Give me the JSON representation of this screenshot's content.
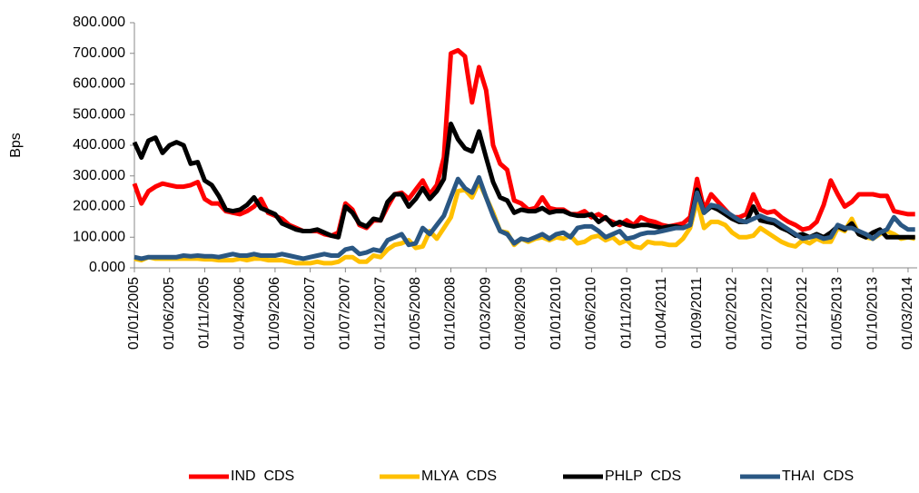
{
  "chart_data": {
    "type": "line",
    "y_label": "Bps",
    "categories": [
      "01/01/2005",
      null,
      null,
      null,
      null,
      "01/06/2005",
      null,
      null,
      null,
      null,
      "01/11/2005",
      null,
      null,
      null,
      null,
      "01/04/2006",
      null,
      null,
      null,
      null,
      "01/09/2006",
      null,
      null,
      null,
      null,
      "01/02/2007",
      null,
      null,
      null,
      null,
      "01/07/2007",
      null,
      null,
      null,
      null,
      "01/12/2007",
      null,
      null,
      null,
      null,
      "01/05/2008",
      null,
      null,
      null,
      null,
      "01/10/2008",
      null,
      null,
      null,
      null,
      "01/03/2009",
      null,
      null,
      null,
      null,
      "01/08/2009",
      null,
      null,
      null,
      null,
      "01/01/2010",
      null,
      null,
      null,
      null,
      "01/06/2010",
      null,
      null,
      null,
      null,
      "01/11/2010",
      null,
      null,
      null,
      null,
      "01/04/2011",
      null,
      null,
      null,
      null,
      "01/09/2011",
      null,
      null,
      null,
      null,
      "01/02/2012",
      null,
      null,
      null,
      null,
      "01/07/2012",
      null,
      null,
      null,
      null,
      "01/12/2012",
      null,
      null,
      null,
      null,
      "01/05/2013",
      null,
      null,
      null,
      null,
      "01/10/2013",
      null,
      null,
      null,
      null,
      "01/03/2014",
      null
    ],
    "series": [
      {
        "name": "IND  CDS",
        "color": "#ff0000",
        "values": [
          275,
          210,
          250,
          265,
          275,
          270,
          265,
          265,
          270,
          280,
          225,
          210,
          210,
          185,
          180,
          175,
          185,
          200,
          225,
          180,
          170,
          160,
          140,
          130,
          120,
          120,
          120,
          110,
          105,
          115,
          210,
          190,
          140,
          130,
          155,
          155,
          200,
          240,
          245,
          225,
          255,
          285,
          240,
          270,
          360,
          700,
          710,
          690,
          540,
          655,
          580,
          400,
          340,
          320,
          220,
          210,
          190,
          195,
          230,
          195,
          190,
          190,
          175,
          175,
          185,
          165,
          175,
          160,
          150,
          140,
          155,
          140,
          165,
          155,
          150,
          140,
          135,
          140,
          145,
          165,
          290,
          190,
          240,
          215,
          190,
          165,
          165,
          175,
          240,
          190,
          180,
          185,
          165,
          150,
          140,
          125,
          130,
          150,
          205,
          285,
          240,
          200,
          215,
          240,
          240,
          240,
          235,
          235,
          185,
          180,
          175,
          175
        ]
      },
      {
        "name": "MLYA  CDS",
        "color": "#ffc000",
        "values": [
          30,
          25,
          35,
          30,
          30,
          30,
          30,
          30,
          30,
          30,
          28,
          28,
          25,
          25,
          25,
          30,
          25,
          30,
          30,
          25,
          25,
          25,
          20,
          15,
          15,
          15,
          20,
          15,
          15,
          20,
          35,
          35,
          20,
          20,
          40,
          35,
          60,
          75,
          80,
          90,
          65,
          70,
          120,
          95,
          130,
          165,
          250,
          255,
          230,
          280,
          230,
          180,
          120,
          115,
          75,
          95,
          85,
          95,
          100,
          90,
          100,
          95,
          105,
          80,
          85,
          100,
          105,
          90,
          100,
          80,
          90,
          70,
          65,
          85,
          80,
          80,
          75,
          75,
          95,
          130,
          220,
          130,
          150,
          150,
          140,
          115,
          100,
          100,
          105,
          130,
          115,
          100,
          85,
          75,
          70,
          90,
          80,
          95,
          85,
          85,
          130,
          120,
          160,
          110,
          100,
          95,
          110,
          120,
          110,
          95,
          100,
          95
        ]
      },
      {
        "name": "PHLP  CDS",
        "color": "#000000",
        "values": [
          410,
          360,
          415,
          425,
          375,
          400,
          410,
          400,
          340,
          345,
          285,
          270,
          235,
          190,
          185,
          190,
          205,
          230,
          195,
          185,
          175,
          145,
          135,
          125,
          120,
          120,
          125,
          115,
          105,
          100,
          200,
          180,
          145,
          135,
          160,
          155,
          215,
          240,
          240,
          200,
          225,
          260,
          225,
          250,
          290,
          470,
          420,
          390,
          380,
          445,
          360,
          280,
          230,
          220,
          180,
          190,
          185,
          185,
          195,
          180,
          185,
          185,
          175,
          170,
          170,
          175,
          150,
          165,
          140,
          150,
          140,
          135,
          140,
          140,
          135,
          130,
          135,
          135,
          130,
          140,
          255,
          180,
          200,
          190,
          175,
          160,
          150,
          150,
          200,
          155,
          150,
          145,
          130,
          120,
          105,
          110,
          100,
          110,
          100,
          115,
          135,
          125,
          145,
          110,
          100,
          115,
          125,
          100,
          100,
          100,
          100,
          100
        ]
      },
      {
        "name": "THAI  CDS",
        "color": "#2a5783",
        "values": [
          35,
          30,
          35,
          35,
          35,
          35,
          35,
          40,
          38,
          40,
          38,
          38,
          35,
          40,
          45,
          40,
          40,
          45,
          40,
          40,
          40,
          45,
          40,
          35,
          30,
          35,
          40,
          45,
          40,
          40,
          60,
          65,
          45,
          50,
          60,
          55,
          90,
          100,
          110,
          75,
          80,
          130,
          110,
          140,
          170,
          230,
          290,
          260,
          245,
          295,
          230,
          170,
          120,
          110,
          80,
          95,
          90,
          100,
          110,
          95,
          110,
          115,
          100,
          130,
          135,
          135,
          120,
          100,
          110,
          120,
          95,
          100,
          110,
          115,
          115,
          120,
          125,
          130,
          130,
          140,
          245,
          180,
          205,
          200,
          185,
          170,
          155,
          150,
          160,
          170,
          160,
          155,
          140,
          125,
          110,
          95,
          100,
          105,
          95,
          100,
          140,
          130,
          130,
          120,
          110,
          95,
          115,
          125,
          165,
          140,
          125,
          125
        ]
      }
    ],
    "ylim": [
      0,
      800
    ],
    "yticks": [
      {
        "value": 0,
        "label": "0.000"
      },
      {
        "value": 100,
        "label": "100.000"
      },
      {
        "value": 200,
        "label": "200.000"
      },
      {
        "value": 300,
        "label": "300.000"
      },
      {
        "value": 400,
        "label": "400.000"
      },
      {
        "value": 500,
        "label": "500.000"
      },
      {
        "value": 600,
        "label": "600.000"
      },
      {
        "value": 700,
        "label": "700.000"
      },
      {
        "value": 800,
        "label": "800.000"
      }
    ],
    "legend": "bottom"
  }
}
